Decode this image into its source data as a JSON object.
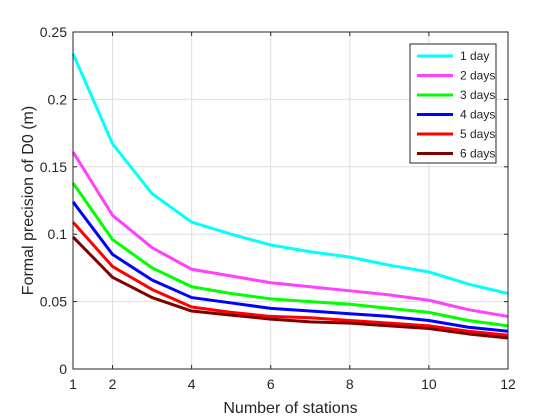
{
  "chart_data": {
    "type": "line",
    "title": "",
    "xlabel": "Number of stations",
    "ylabel": "Formal precision of D0 (m)",
    "xlim": [
      1,
      12
    ],
    "ylim": [
      0,
      0.25
    ],
    "xticks": [
      1,
      2,
      4,
      6,
      8,
      10,
      12
    ],
    "yticks": [
      0,
      0.05,
      0.1,
      0.15,
      0.2,
      0.25
    ],
    "grid": true,
    "legend_position": "top-right",
    "x": [
      1,
      2,
      3,
      4,
      5,
      6,
      7,
      8,
      9,
      10,
      11,
      12
    ],
    "series": [
      {
        "name": "1 day",
        "color": "#00ffff",
        "values": [
          0.234,
          0.167,
          0.13,
          0.109,
          0.1,
          0.092,
          0.087,
          0.083,
          0.077,
          0.072,
          0.063,
          0.056
        ]
      },
      {
        "name": "2 days",
        "color": "#ff40ff",
        "values": [
          0.161,
          0.114,
          0.09,
          0.074,
          0.069,
          0.064,
          0.061,
          0.058,
          0.055,
          0.051,
          0.044,
          0.039
        ]
      },
      {
        "name": "3 days",
        "color": "#00ff00",
        "values": [
          0.138,
          0.096,
          0.075,
          0.061,
          0.056,
          0.052,
          0.05,
          0.048,
          0.045,
          0.042,
          0.036,
          0.032
        ]
      },
      {
        "name": "4 days",
        "color": "#0000ff",
        "values": [
          0.124,
          0.085,
          0.066,
          0.053,
          0.049,
          0.045,
          0.043,
          0.041,
          0.039,
          0.036,
          0.031,
          0.028
        ]
      },
      {
        "name": "5 days",
        "color": "#ff0000",
        "values": [
          0.109,
          0.076,
          0.059,
          0.046,
          0.042,
          0.039,
          0.038,
          0.036,
          0.034,
          0.032,
          0.028,
          0.025
        ]
      },
      {
        "name": "6 days",
        "color": "#800000",
        "values": [
          0.098,
          0.068,
          0.053,
          0.043,
          0.04,
          0.037,
          0.035,
          0.034,
          0.032,
          0.03,
          0.026,
          0.023
        ]
      }
    ]
  }
}
